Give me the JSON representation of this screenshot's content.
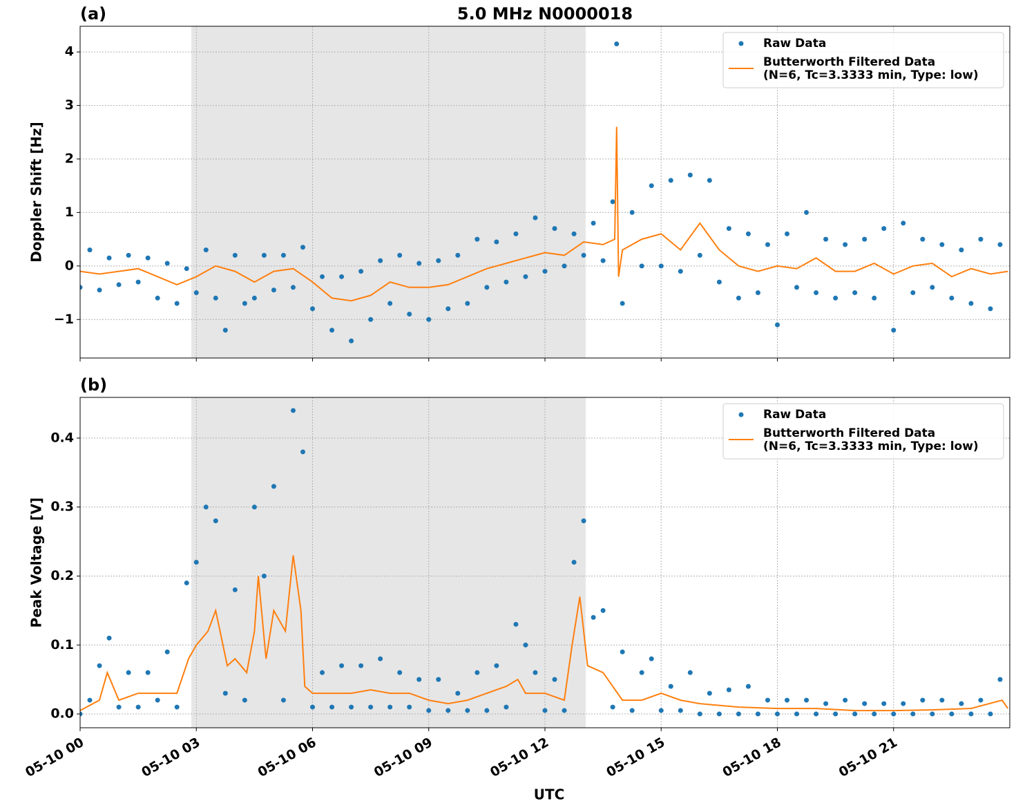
{
  "chart_data": [
    {
      "type": "line",
      "title": "5.0 MHz N0000018",
      "panel_label": "(a)",
      "ylabel": "Doppler Shift [Hz]",
      "xlim": [
        0,
        24
      ],
      "xticks": [
        0,
        3,
        6,
        9,
        12,
        15,
        18,
        21
      ],
      "xtick_labels": false,
      "ylim": [
        -1.72,
        4.48
      ],
      "yticks": [
        {
          "value": -1,
          "label": "−1"
        },
        0,
        1,
        2,
        3,
        4
      ],
      "grid": true,
      "legend": "upper right",
      "shaded_span": [
        2.87,
        13.05
      ],
      "shade_color": "#e6e6e6",
      "series": [
        {
          "name": "Raw Data",
          "color": "#1f77b4",
          "style": "points",
          "x": [
            0,
            0.25,
            0.5,
            0.75,
            1,
            1.25,
            1.5,
            1.75,
            2,
            2.25,
            2.5,
            2.75,
            3,
            3.25,
            3.5,
            3.75,
            4,
            4.25,
            4.5,
            4.75,
            5,
            5.25,
            5.5,
            5.75,
            6,
            6.25,
            6.5,
            6.75,
            7,
            7.25,
            7.5,
            7.75,
            8,
            8.25,
            8.5,
            8.75,
            9,
            9.25,
            9.5,
            9.75,
            10,
            10.25,
            10.5,
            10.75,
            11,
            11.25,
            11.5,
            11.75,
            12,
            12.25,
            12.5,
            12.75,
            13,
            13.25,
            13.5,
            13.75,
            13.85,
            14,
            14.25,
            14.5,
            14.75,
            15,
            15.25,
            15.5,
            15.75,
            16,
            16.25,
            16.5,
            16.75,
            17,
            17.25,
            17.5,
            17.75,
            18,
            18.25,
            18.5,
            18.75,
            19,
            19.25,
            19.5,
            19.75,
            20,
            20.25,
            20.5,
            20.75,
            21,
            21.25,
            21.5,
            21.75,
            22,
            22.25,
            22.5,
            22.75,
            23,
            23.25,
            23.5,
            23.75
          ],
          "values": [
            -0.4,
            0.3,
            -0.45,
            0.15,
            -0.35,
            0.2,
            -0.3,
            0.15,
            -0.6,
            0.05,
            -0.7,
            -0.05,
            -0.5,
            0.3,
            -0.6,
            -1.2,
            0.2,
            -0.7,
            -0.6,
            0.2,
            -0.45,
            0.2,
            -0.4,
            0.35,
            -0.8,
            -0.2,
            -1.2,
            -0.2,
            -1.4,
            -0.1,
            -1.0,
            0.1,
            -0.7,
            0.2,
            -0.9,
            0.05,
            -1.0,
            0.1,
            -0.8,
            0.2,
            -0.7,
            0.5,
            -0.4,
            0.45,
            -0.3,
            0.6,
            -0.2,
            0.9,
            -0.1,
            0.7,
            0.0,
            0.6,
            0.2,
            0.8,
            0.1,
            1.2,
            4.15,
            -0.7,
            1.0,
            0.0,
            1.5,
            0.0,
            1.6,
            -0.1,
            1.7,
            0.2,
            1.6,
            -0.3,
            0.7,
            -0.6,
            0.6,
            -0.5,
            0.4,
            -1.1,
            0.6,
            -0.4,
            1.0,
            -0.5,
            0.5,
            -0.6,
            0.4,
            -0.5,
            0.5,
            -0.6,
            0.7,
            -1.2,
            0.8,
            -0.5,
            0.5,
            -0.4,
            0.4,
            -0.6,
            0.3,
            -0.7,
            0.5,
            -0.8,
            0.4
          ]
        },
        {
          "name": "Butterworth Filtered Data\n(N=6, Tc=3.3333 min, Type: low)",
          "color": "#ff7f0e",
          "style": "line",
          "x": [
            0,
            0.5,
            1,
            1.5,
            2,
            2.5,
            3,
            3.5,
            4,
            4.5,
            5,
            5.5,
            6,
            6.5,
            7,
            7.5,
            8,
            8.5,
            9,
            9.5,
            10,
            10.5,
            11,
            11.5,
            12,
            12.5,
            13,
            13.5,
            13.8,
            13.85,
            13.9,
            14,
            14.5,
            15,
            15.5,
            16,
            16.5,
            17,
            17.5,
            18,
            18.5,
            19,
            19.5,
            20,
            20.5,
            21,
            21.5,
            22,
            22.5,
            23,
            23.5,
            23.95
          ],
          "values": [
            -0.1,
            -0.15,
            -0.1,
            -0.05,
            -0.2,
            -0.35,
            -0.2,
            0.0,
            -0.1,
            -0.3,
            -0.1,
            -0.05,
            -0.3,
            -0.6,
            -0.65,
            -0.55,
            -0.3,
            -0.4,
            -0.4,
            -0.35,
            -0.2,
            -0.05,
            0.05,
            0.15,
            0.25,
            0.2,
            0.45,
            0.4,
            0.5,
            2.6,
            -0.2,
            0.3,
            0.5,
            0.6,
            0.3,
            0.8,
            0.3,
            0.0,
            -0.1,
            0.0,
            -0.05,
            0.15,
            -0.1,
            -0.1,
            0.05,
            -0.15,
            0.0,
            0.05,
            -0.2,
            -0.05,
            -0.15,
            -0.1
          ]
        }
      ]
    },
    {
      "type": "line",
      "panel_label": "(b)",
      "ylabel": "Peak Voltage [V]",
      "xlabel": "UTC",
      "xlim": [
        0,
        24
      ],
      "xticks": [
        {
          "value": 0,
          "label": "05-10 00"
        },
        {
          "value": 3,
          "label": "05-10 03"
        },
        {
          "value": 6,
          "label": "05-10 06"
        },
        {
          "value": 9,
          "label": "05-10 09"
        },
        {
          "value": 12,
          "label": "05-10 12"
        },
        {
          "value": 15,
          "label": "05-10 15"
        },
        {
          "value": 18,
          "label": "05-10 18"
        },
        {
          "value": 21,
          "label": "05-10 21"
        }
      ],
      "xtick_labels": true,
      "ylim": [
        -0.02,
        0.459
      ],
      "yticks": [
        {
          "value": 0,
          "label": "0.0"
        },
        0.1,
        0.2,
        0.3,
        0.4
      ],
      "grid": true,
      "legend": "upper right",
      "shaded_span": [
        2.87,
        13.05
      ],
      "shade_color": "#e6e6e6",
      "series": [
        {
          "name": "Raw Data",
          "color": "#1f77b4",
          "style": "points",
          "x": [
            0,
            0.25,
            0.5,
            0.75,
            1,
            1.25,
            1.5,
            1.75,
            2,
            2.25,
            2.5,
            2.75,
            3,
            3.25,
            3.5,
            3.75,
            4,
            4.25,
            4.5,
            4.75,
            5,
            5.25,
            5.5,
            5.75,
            6,
            6.25,
            6.5,
            6.75,
            7,
            7.25,
            7.5,
            7.75,
            8,
            8.25,
            8.5,
            8.75,
            9,
            9.25,
            9.5,
            9.75,
            10,
            10.25,
            10.5,
            10.75,
            11,
            11.25,
            11.5,
            11.75,
            12,
            12.25,
            12.5,
            12.75,
            13,
            13.25,
            13.5,
            13.75,
            14,
            14.25,
            14.5,
            14.75,
            15,
            15.25,
            15.5,
            15.75,
            16,
            16.25,
            16.5,
            16.75,
            17,
            17.25,
            17.5,
            17.75,
            18,
            18.25,
            18.5,
            18.75,
            19,
            19.25,
            19.5,
            19.75,
            20,
            20.25,
            20.5,
            20.75,
            21,
            21.25,
            21.5,
            21.75,
            22,
            22.25,
            22.5,
            22.75,
            23,
            23.25,
            23.5,
            23.75
          ],
          "values": [
            0.0,
            0.02,
            0.07,
            0.11,
            0.01,
            0.06,
            0.01,
            0.06,
            0.02,
            0.09,
            0.01,
            0.19,
            0.22,
            0.3,
            0.28,
            0.03,
            0.18,
            0.02,
            0.3,
            0.2,
            0.33,
            0.02,
            0.44,
            0.38,
            0.01,
            0.06,
            0.01,
            0.07,
            0.01,
            0.07,
            0.01,
            0.08,
            0.01,
            0.06,
            0.01,
            0.05,
            0.005,
            0.05,
            0.005,
            0.03,
            0.005,
            0.06,
            0.005,
            0.07,
            0.01,
            0.13,
            0.1,
            0.06,
            0.005,
            0.05,
            0.005,
            0.22,
            0.28,
            0.14,
            0.15,
            0.01,
            0.09,
            0.005,
            0.06,
            0.08,
            0.005,
            0.04,
            0.005,
            0.06,
            0.0,
            0.03,
            0.0,
            0.035,
            0.0,
            0.04,
            0.0,
            0.02,
            0.0,
            0.02,
            0.0,
            0.02,
            0.0,
            0.015,
            0.0,
            0.02,
            0.0,
            0.015,
            0.0,
            0.015,
            0.0,
            0.015,
            0.0,
            0.02,
            0.0,
            0.02,
            0.0,
            0.015,
            0.0,
            0.02,
            0.0,
            0.05
          ]
        },
        {
          "name": "Butterworth Filtered Data\n(N=6, Tc=3.3333 min, Type: low)",
          "color": "#ff7f0e",
          "style": "line",
          "x": [
            0,
            0.5,
            0.7,
            1,
            1.5,
            2,
            2.5,
            2.8,
            3,
            3.3,
            3.5,
            3.8,
            4,
            4.3,
            4.5,
            4.6,
            4.8,
            5,
            5.3,
            5.5,
            5.7,
            5.8,
            6,
            6.5,
            7,
            7.5,
            8,
            8.5,
            9,
            9.5,
            10,
            10.5,
            11,
            11.3,
            11.5,
            12,
            12.5,
            12.7,
            12.9,
            13.1,
            13.5,
            14,
            14.5,
            15,
            15.5,
            16,
            17,
            18,
            19,
            20,
            21,
            22,
            23,
            23.8,
            23.95
          ],
          "values": [
            0.005,
            0.02,
            0.06,
            0.02,
            0.03,
            0.03,
            0.03,
            0.08,
            0.1,
            0.12,
            0.15,
            0.07,
            0.08,
            0.06,
            0.12,
            0.2,
            0.08,
            0.15,
            0.12,
            0.23,
            0.15,
            0.04,
            0.03,
            0.03,
            0.03,
            0.035,
            0.03,
            0.03,
            0.02,
            0.015,
            0.02,
            0.03,
            0.04,
            0.05,
            0.03,
            0.03,
            0.02,
            0.1,
            0.17,
            0.07,
            0.06,
            0.02,
            0.02,
            0.03,
            0.02,
            0.015,
            0.01,
            0.008,
            0.008,
            0.005,
            0.005,
            0.006,
            0.008,
            0.02,
            0.008
          ]
        }
      ]
    }
  ]
}
